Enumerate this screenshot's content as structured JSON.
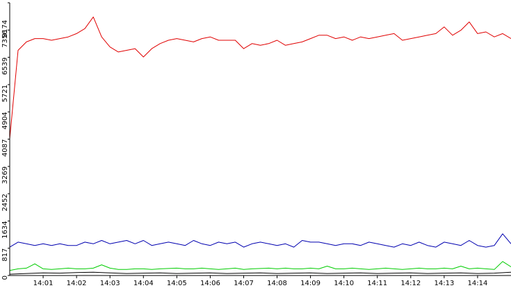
{
  "chart_data": {
    "type": "line",
    "title": "",
    "xlabel": "",
    "ylabel": "",
    "legend": "none",
    "grid": false,
    "background": "#ffffff",
    "axis_color": "#000000",
    "x_unit": "minute",
    "x_start": 0,
    "x_end": 15,
    "x_ticks": [
      {
        "x": 1,
        "label": "14:01"
      },
      {
        "x": 2,
        "label": "14:02"
      },
      {
        "x": 3,
        "label": "14:03"
      },
      {
        "x": 4,
        "label": "14:04"
      },
      {
        "x": 5,
        "label": "14:05"
      },
      {
        "x": 6,
        "label": "14:06"
      },
      {
        "x": 7,
        "label": "14:07"
      },
      {
        "x": 8,
        "label": "14:08"
      },
      {
        "x": 9,
        "label": "14:09"
      },
      {
        "x": 10,
        "label": "14:10"
      },
      {
        "x": 11,
        "label": "14:11"
      },
      {
        "x": 12,
        "label": "14:12"
      },
      {
        "x": 13,
        "label": "14:13"
      },
      {
        "x": 14,
        "label": "14:14"
      }
    ],
    "ylim": [
      0,
      8174
    ],
    "y_ticks": [
      {
        "value": 0,
        "label": "0"
      },
      {
        "value": 817,
        "label": "817"
      },
      {
        "value": 1634,
        "label": "1634"
      },
      {
        "value": 2452,
        "label": "2452"
      },
      {
        "value": 3269,
        "label": "3269"
      },
      {
        "value": 4087,
        "label": "4087"
      },
      {
        "value": 4904,
        "label": "4904"
      },
      {
        "value": 5721,
        "label": "5721"
      },
      {
        "value": 6539,
        "label": "6539"
      },
      {
        "value": 7356,
        "label": "7356"
      },
      {
        "value": 8174,
        "label": "8174"
      }
    ],
    "series": [
      {
        "color": "#e00000",
        "x": [
          0,
          0.25,
          0.5,
          0.75,
          1,
          1.25,
          1.5,
          1.75,
          2,
          2.25,
          2.5,
          2.75,
          3,
          3.25,
          3.5,
          3.75,
          4,
          4.25,
          4.5,
          4.75,
          5,
          5.25,
          5.5,
          5.75,
          6,
          6.25,
          6.5,
          6.75,
          7,
          7.25,
          7.5,
          7.75,
          8,
          8.25,
          8.5,
          8.75,
          9,
          9.25,
          9.5,
          9.75,
          10,
          10.25,
          10.5,
          10.75,
          11,
          11.25,
          11.5,
          11.75,
          12,
          12.25,
          12.5,
          12.75,
          13,
          13.25,
          13.5,
          13.75,
          14,
          14.25,
          14.5,
          14.75,
          15
        ],
        "y": [
          4100,
          6750,
          7000,
          7100,
          7100,
          7050,
          7100,
          7150,
          7250,
          7400,
          7750,
          7150,
          6850,
          6700,
          6750,
          6800,
          6550,
          6800,
          6950,
          7050,
          7100,
          7050,
          7000,
          7100,
          7150,
          7050,
          7050,
          7050,
          6800,
          6950,
          6900,
          6950,
          7050,
          6900,
          6950,
          7000,
          7100,
          7200,
          7200,
          7100,
          7150,
          7050,
          7150,
          7100,
          7150,
          7200,
          7250,
          7050,
          7100,
          7150,
          7200,
          7250,
          7450,
          7200,
          7350,
          7600,
          7250,
          7300,
          7150,
          7250,
          7100
        ]
      },
      {
        "color": "#0000b0",
        "x": [
          0,
          0.25,
          0.5,
          0.75,
          1,
          1.25,
          1.5,
          1.75,
          2,
          2.25,
          2.5,
          2.75,
          3,
          3.25,
          3.5,
          3.75,
          4,
          4.25,
          4.5,
          4.75,
          5,
          5.25,
          5.5,
          5.75,
          6,
          6.25,
          6.5,
          6.75,
          7,
          7.25,
          7.5,
          7.75,
          8,
          8.25,
          8.5,
          8.75,
          9,
          9.25,
          9.5,
          9.75,
          10,
          10.25,
          10.5,
          10.75,
          11,
          11.25,
          11.5,
          11.75,
          12,
          12.25,
          12.5,
          12.75,
          13,
          13.25,
          13.5,
          13.75,
          14,
          14.25,
          14.5,
          14.75,
          15
        ],
        "y": [
          850,
          1000,
          950,
          900,
          950,
          900,
          950,
          900,
          900,
          1000,
          950,
          1050,
          950,
          1000,
          1050,
          950,
          1050,
          900,
          950,
          1000,
          950,
          900,
          1050,
          950,
          900,
          1000,
          950,
          1000,
          850,
          950,
          1000,
          950,
          900,
          950,
          850,
          1050,
          1000,
          1000,
          950,
          900,
          950,
          950,
          900,
          1000,
          950,
          900,
          850,
          950,
          900,
          1000,
          900,
          850,
          1000,
          950,
          900,
          1050,
          900,
          850,
          900,
          1250,
          950
        ]
      },
      {
        "color": "#00cc00",
        "x": [
          0,
          0.25,
          0.5,
          0.75,
          1,
          1.25,
          1.5,
          1.75,
          2,
          2.25,
          2.5,
          2.75,
          3,
          3.25,
          3.5,
          3.75,
          4,
          4.25,
          4.5,
          4.75,
          5,
          5.25,
          5.5,
          5.75,
          6,
          6.25,
          6.5,
          6.75,
          7,
          7.25,
          7.5,
          7.75,
          8,
          8.25,
          8.5,
          8.75,
          9,
          9.25,
          9.5,
          9.75,
          10,
          10.25,
          10.5,
          10.75,
          11,
          11.25,
          11.5,
          11.75,
          12,
          12.25,
          12.5,
          12.75,
          13,
          13.25,
          13.5,
          13.75,
          14,
          14.25,
          14.5,
          14.75,
          15
        ],
        "y": [
          150,
          200,
          220,
          350,
          200,
          180,
          200,
          220,
          200,
          200,
          220,
          320,
          220,
          180,
          180,
          200,
          200,
          180,
          200,
          210,
          220,
          200,
          200,
          220,
          200,
          180,
          200,
          220,
          180,
          200,
          210,
          220,
          200,
          220,
          200,
          200,
          220,
          200,
          280,
          200,
          200,
          220,
          200,
          180,
          200,
          220,
          200,
          180,
          200,
          220,
          200,
          200,
          220,
          200,
          280,
          200,
          220,
          200,
          180,
          420,
          260
        ]
      },
      {
        "color": "#000000",
        "x": [
          0,
          0.5,
          1,
          1.5,
          2,
          2.5,
          3,
          3.5,
          4,
          4.5,
          5,
          5.5,
          6,
          6.5,
          7,
          7.5,
          8,
          8.5,
          9,
          9.5,
          10,
          10.5,
          11,
          11.5,
          12,
          12.5,
          13,
          13.5,
          14,
          14.5,
          15
        ],
        "y": [
          40,
          60,
          80,
          70,
          90,
          100,
          80,
          60,
          70,
          80,
          60,
          70,
          80,
          60,
          70,
          80,
          60,
          70,
          80,
          60,
          70,
          80,
          60,
          70,
          80,
          60,
          70,
          80,
          60,
          70,
          100
        ]
      }
    ]
  }
}
